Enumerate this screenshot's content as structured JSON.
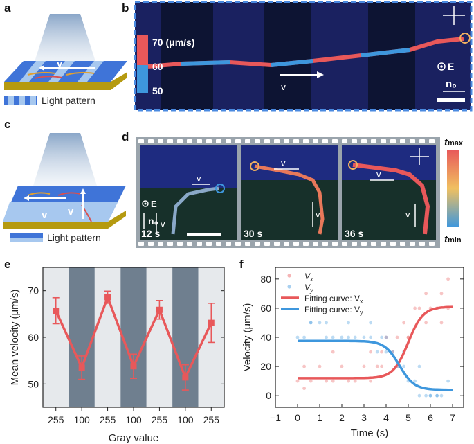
{
  "panels": {
    "a": {
      "label": "a",
      "v": "v",
      "legend": "Light pattern"
    },
    "b": {
      "label": "b",
      "speed_unit": "70 (μm/s)",
      "speed_mid": "60",
      "speed_low": "50",
      "v": "v",
      "e": "E",
      "n0": "n₀"
    },
    "c": {
      "label": "c",
      "v1": "v",
      "v2": "v",
      "legend": "Light pattern"
    },
    "d": {
      "label": "d",
      "e": "E",
      "n0": "n₀",
      "v": "v",
      "t1": "12 s",
      "t2": "30 s",
      "t3": "36 s",
      "tmax": "t",
      "tmax_sub": "max",
      "tmin": "t",
      "tmin_sub": "min"
    },
    "e": {
      "label": "e"
    },
    "f": {
      "label": "f"
    }
  },
  "colors": {
    "red": "#e8585a",
    "blue": "#3e97dd",
    "gray_band": "#6f7f8f",
    "light_band": "#e6e9ec"
  },
  "chart_data": [
    {
      "id": "e",
      "type": "line",
      "title": "",
      "xlabel": "Gray value",
      "ylabel": "Mean velocity (μm/s)",
      "categories": [
        "255",
        "100",
        "255",
        "100",
        "255",
        "100",
        "255"
      ],
      "values": [
        65.7,
        53.5,
        68.6,
        53.8,
        65.9,
        51.4,
        63.1
      ],
      "errors": [
        2.8,
        2.5,
        1.3,
        2.6,
        2.0,
        2.7,
        4.2
      ],
      "ylim": [
        45,
        75
      ],
      "yticks": [
        50,
        60,
        70
      ]
    },
    {
      "id": "f",
      "type": "scatter",
      "xlabel": "Time (s)",
      "ylabel": "Velocity (μm/s)",
      "xlim": [
        -1,
        7.5
      ],
      "ylim": [
        -8,
        88
      ],
      "xticks": [
        -1,
        0,
        1,
        2,
        3,
        4,
        5,
        6,
        7
      ],
      "yticks": [
        0,
        20,
        40,
        60,
        80
      ],
      "series": [
        {
          "name": "Vx",
          "x": [
            0,
            0.3,
            0.6,
            1,
            1.3,
            1.6,
            2,
            2.3,
            2.6,
            3,
            3.3,
            3.6,
            3.8,
            4,
            4.3,
            4.5,
            4.8,
            5,
            5.3,
            5.5,
            5.8,
            6,
            6.3,
            6.5,
            6.8,
            0.3,
            1.6,
            3.3,
            3.8,
            4.5,
            5,
            5.8,
            6.5,
            6.8
          ],
          "y": [
            10,
            20,
            10,
            20,
            10,
            10,
            20,
            10,
            10,
            20,
            10,
            20,
            30,
            40,
            30,
            40,
            50,
            40,
            60,
            60,
            50,
            60,
            60,
            70,
            80,
            5,
            30,
            30,
            20,
            20,
            40,
            70,
            50,
            60
          ]
        },
        {
          "name": "Vy",
          "x": [
            0,
            0.3,
            0.6,
            1,
            1.3,
            1.6,
            2,
            2.3,
            2.6,
            3,
            3.3,
            3.6,
            3.8,
            4,
            4.3,
            4.5,
            4.8,
            5,
            5.3,
            5.5,
            5.8,
            6,
            6.3,
            6.5,
            6.8,
            0.6,
            1.3,
            2.3,
            3.3,
            4,
            4.8,
            5.5,
            6,
            6.3
          ],
          "y": [
            40,
            40,
            50,
            50,
            40,
            40,
            40,
            40,
            40,
            40,
            40,
            30,
            40,
            30,
            30,
            20,
            20,
            10,
            10,
            0,
            0,
            0,
            0,
            0,
            10,
            50,
            50,
            50,
            50,
            40,
            30,
            20,
            0,
            0
          ]
        },
        {
          "name": "Fitting curve: Vx",
          "fit": "sigmoid",
          "a": 12,
          "b": 61,
          "x0": 5.0,
          "k": 3.0
        },
        {
          "name": "Fitting curve: Vy",
          "fit": "sigmoid",
          "a": 37.5,
          "b": 4,
          "x0": 4.6,
          "k": 3.0
        }
      ],
      "legend": [
        "V",
        "V",
        "Fitting curve: V",
        "Fitting curve: V"
      ],
      "legend_sub": [
        "x",
        "y",
        "x",
        "y"
      ]
    }
  ]
}
